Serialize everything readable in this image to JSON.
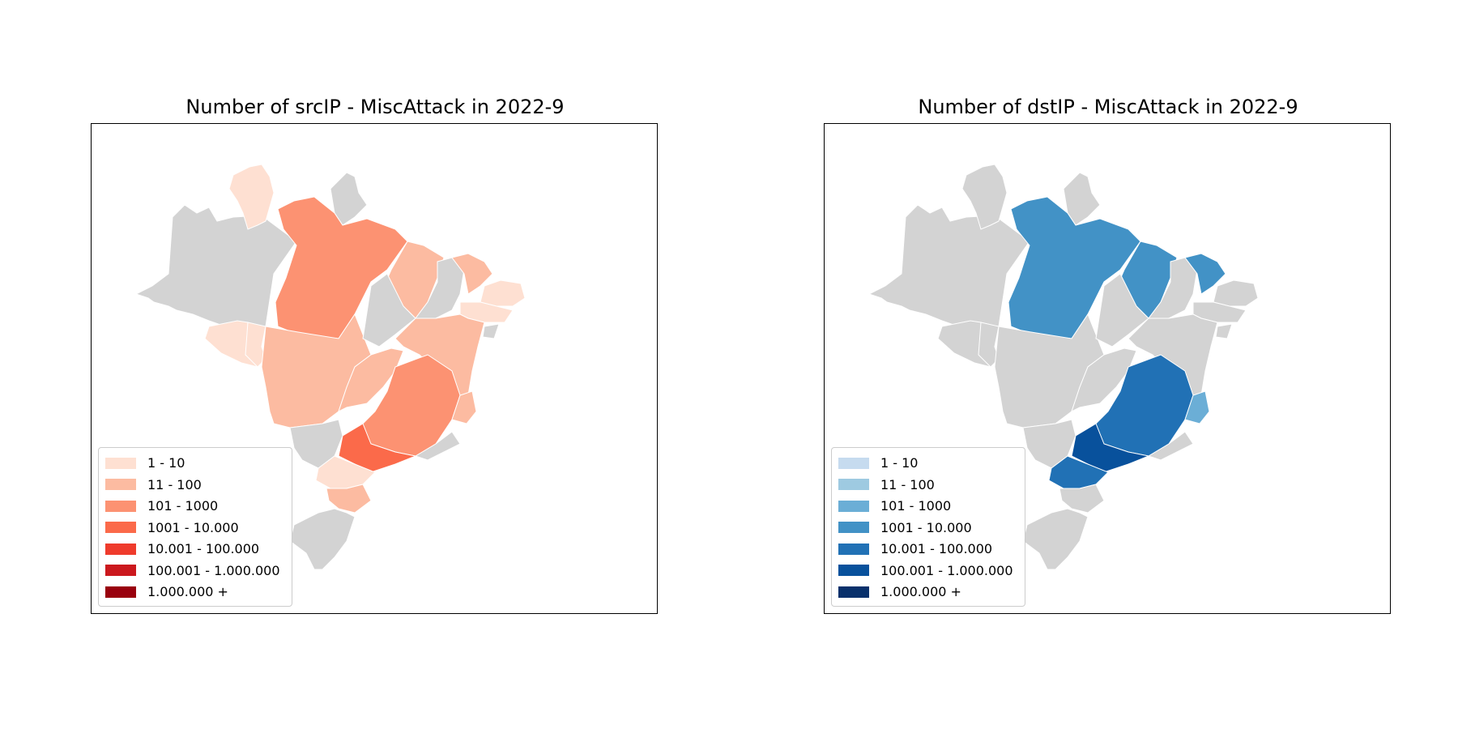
{
  "maps": [
    {
      "title": "Number of srcIP - MiscAttack in 2022-9",
      "legend": [
        {
          "label": "1 - 10",
          "color": "#fee0d2"
        },
        {
          "label": "11 - 100",
          "color": "#fcbba1"
        },
        {
          "label": "101 - 1000",
          "color": "#fc9272"
        },
        {
          "label": "1001 - 10.000",
          "color": "#fb6a4a"
        },
        {
          "label": "10.001 - 100.000",
          "color": "#ef3b2c"
        },
        {
          "label": "100.001 - 1.000.000",
          "color": "#cb181d"
        },
        {
          "label": "1.000.000 +",
          "color": "#99000d"
        }
      ],
      "regions": {
        "roraima": "#fee0d2",
        "para": "#fc9272",
        "maranhao": "#fcbba1",
        "ceara": "#fcbba1",
        "rn_pb": "#fee0d2",
        "pe_al": "#fee0d2",
        "acre": "#fee0d2",
        "rondonia": "#fee0d2",
        "mato_grosso": "#fcbba1",
        "bahia": "#fcbba1",
        "goias": "#fcbba1",
        "minas_gerais": "#fc9272",
        "espirito_santo": "#fcbba1",
        "sao_paulo": "#fb6a4a",
        "parana": "#fee0d2",
        "santa_catarina": "#fcbba1",
        "amapa": "#d3d3d3",
        "amazonas": "#d3d3d3",
        "tocantins": "#d3d3d3",
        "piaui": "#d3d3d3",
        "mato_grosso_do_sul": "#d3d3d3",
        "rio_de_janeiro": "#d3d3d3",
        "rio_grande_do_sul": "#d3d3d3",
        "sergipe": "#d3d3d3"
      }
    },
    {
      "title": "Number of dstIP - MiscAttack in 2022-9",
      "legend": [
        {
          "label": "1 - 10",
          "color": "#c6dbef"
        },
        {
          "label": "11 - 100",
          "color": "#9ecae1"
        },
        {
          "label": "101 - 1000",
          "color": "#6baed6"
        },
        {
          "label": "1001 - 10.000",
          "color": "#4292c6"
        },
        {
          "label": "10.001 - 100.000",
          "color": "#2171b5"
        },
        {
          "label": "100.001 - 1.000.000",
          "color": "#08519c"
        },
        {
          "label": "1.000.000 +",
          "color": "#08306b"
        }
      ],
      "regions": {
        "roraima": "#d3d3d3",
        "para": "#4292c6",
        "maranhao": "#4292c6",
        "ceara": "#4292c6",
        "rn_pb": "#d3d3d3",
        "pe_al": "#d3d3d3",
        "acre": "#d3d3d3",
        "rondonia": "#d3d3d3",
        "mato_grosso": "#d3d3d3",
        "bahia": "#d3d3d3",
        "goias": "#d3d3d3",
        "minas_gerais": "#2171b5",
        "espirito_santo": "#6baed6",
        "sao_paulo": "#08519c",
        "parana": "#2171b5",
        "santa_catarina": "#d3d3d3",
        "amapa": "#d3d3d3",
        "amazonas": "#d3d3d3",
        "tocantins": "#d3d3d3",
        "piaui": "#d3d3d3",
        "mato_grosso_do_sul": "#d3d3d3",
        "rio_de_janeiro": "#d3d3d3",
        "rio_grande_do_sul": "#d3d3d3",
        "sergipe": "#d3d3d3"
      }
    }
  ]
}
